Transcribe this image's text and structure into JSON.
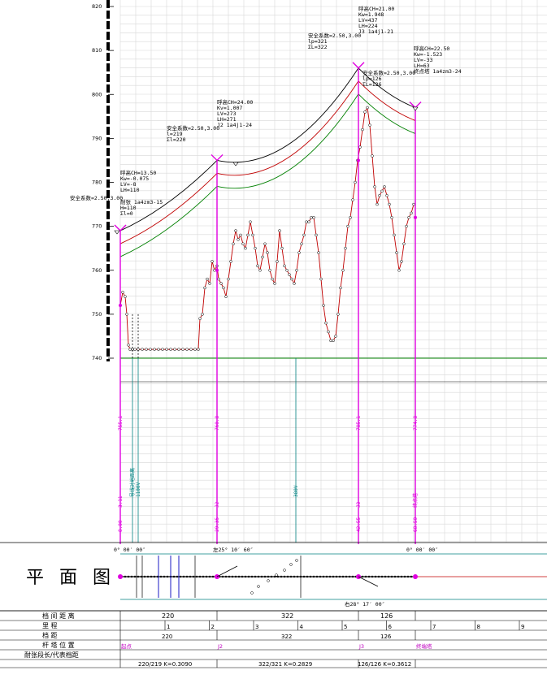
{
  "y_axis": {
    "ticks": [
      "820",
      "810",
      "800",
      "790",
      "780",
      "770",
      "760",
      "750",
      "740"
    ]
  },
  "towers": [
    {
      "id": "T1",
      "anno": [
        "耐张 1a4zm3-15",
        "H=110",
        "Σl=0"
      ],
      "block": [
        "呼高CH=13.50",
        "Kw=-0.075",
        "LV=-8",
        "LH=110"
      ],
      "top_label": "安全系数=2.50,3.00",
      "vlabels": [
        "755.1",
        "8.00",
        "3.11"
      ],
      "name": "起点"
    },
    {
      "id": "T2",
      "anno": [
        "安全系数=2.50,3.00",
        "l=219",
        "Σl=220"
      ],
      "block": [
        "呼高CH=24.00",
        "Kv=1.007",
        "LV=273",
        "LH=271",
        "J2  1a4j1-24"
      ],
      "vlabels": [
        "760.8",
        "29.35",
        "J2"
      ],
      "name": "J2"
    },
    {
      "id": "T3",
      "anno": [
        "安全系数=2.50,3.00",
        "lp=321",
        "ΣL=322"
      ],
      "block": [
        "呼高CH=21.00",
        "Kw=1.948",
        "LV=437",
        "LH=224",
        "J3  1a4j1-21"
      ],
      "vlabels": [
        "785.1",
        "42.55",
        "J3"
      ],
      "name": "J3"
    },
    {
      "id": "T4",
      "anno": [
        "安全系数=2.50,3.00",
        "lp=126",
        "ΣL=126"
      ],
      "block": [
        "呼高CH=22.50",
        "Kw=-1.523",
        "LV=-33",
        "LH=63",
        "终点塔 1a4zm3-24"
      ],
      "vlabels": [
        "774.8",
        "68.50",
        "终点塔"
      ],
      "name": "终端塔"
    }
  ],
  "angles": {
    "left": "0° 00′ 00″",
    "j2": "左25° 10′ 60″",
    "j4": "0° 00′ 00″",
    "bottom": "右28° 17′ 00″"
  },
  "plan_title": "平 面 图",
  "table": {
    "rows": [
      {
        "label": "档 间 距 离",
        "cells": [
          "220",
          "322",
          "126"
        ]
      },
      {
        "label": "里    程",
        "cells": [
          "1",
          "2",
          "3",
          "4",
          "5",
          "6",
          "7",
          "8",
          "9"
        ]
      },
      {
        "label": "档    距",
        "cells": [
          "220",
          "322",
          "126"
        ]
      },
      {
        "label": "杆 塔 位 置",
        "cells": [
          "起点",
          "J2",
          "J3",
          "终端塔"
        ]
      },
      {
        "label": "耐张段长/代表档距",
        "cells": [
          "220/219 K=0.3090",
          "322/321 K=0.2829",
          "126/126 K=0.3612"
        ]
      }
    ]
  },
  "colors": {
    "grid": "#d8d8d8",
    "tower": "#e000e0",
    "ground": "#c00000",
    "cond_top": "#000000",
    "cond_mid": "#c00000",
    "cond_low": "#008000",
    "teal": "#008080"
  }
}
